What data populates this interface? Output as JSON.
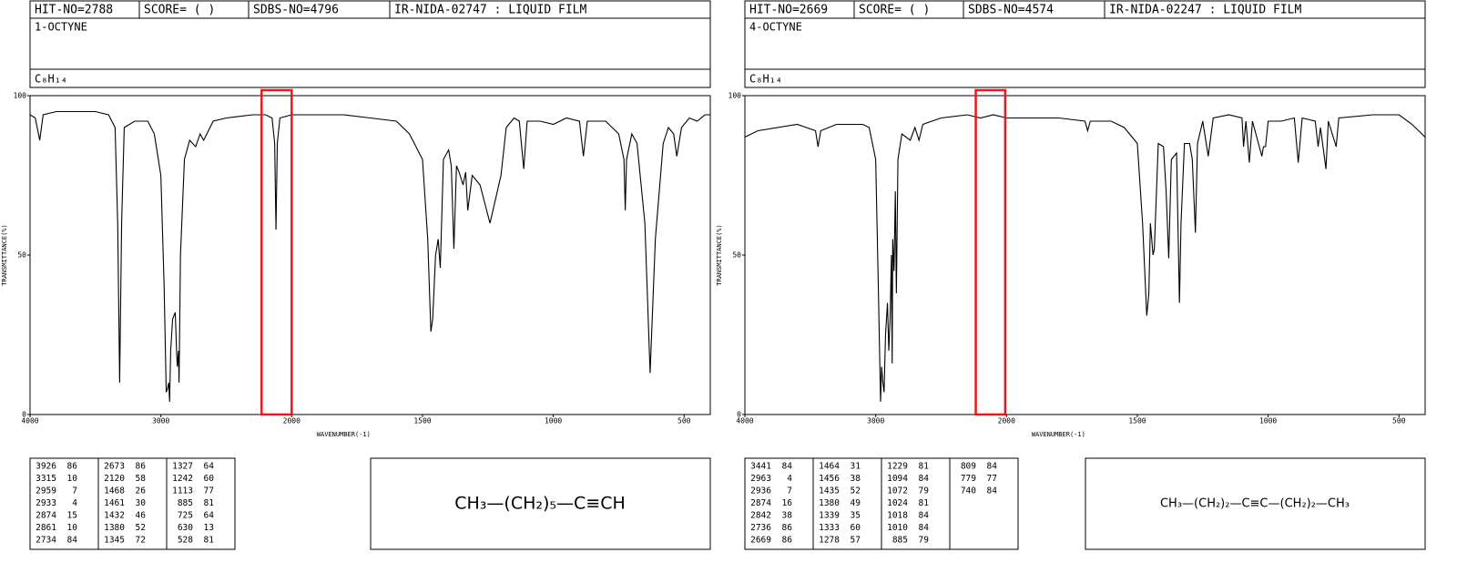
{
  "chart_data": [
    {
      "type": "line",
      "header": {
        "hit_no": "HIT-NO=2788",
        "score": "SCORE=  (   )",
        "sdbs_no": "SDBS-NO=4796",
        "method": "IR-NIDA-02747 : LIQUID FILM"
      },
      "name": "1-OCTYNE",
      "formula": "C₈H₁₄",
      "xlabel": "WAVENUMBER(-1)",
      "ylabel": "TRANSMITTANCE(%)",
      "xlim": [
        4000,
        400
      ],
      "xticks": [
        4000,
        3000,
        2000,
        1500,
        1000,
        500
      ],
      "ylim": [
        0,
        100
      ],
      "yticks": [
        0,
        50,
        100
      ],
      "color": "#000000",
      "highlight": [
        2230,
        2000
      ],
      "highlight_color": "#e8191e",
      "x": [
        4000,
        3960,
        3926,
        3900,
        3800,
        3500,
        3400,
        3350,
        3330,
        3315,
        3300,
        3280,
        3200,
        3100,
        3050,
        3000,
        2975,
        2959,
        2950,
        2940,
        2933,
        2925,
        2910,
        2890,
        2880,
        2874,
        2865,
        2861,
        2850,
        2820,
        2780,
        2734,
        2700,
        2673,
        2600,
        2500,
        2300,
        2200,
        2150,
        2130,
        2120,
        2110,
        2090,
        2000,
        1900,
        1800,
        1700,
        1600,
        1550,
        1500,
        1480,
        1468,
        1461,
        1450,
        1440,
        1432,
        1420,
        1400,
        1390,
        1380,
        1370,
        1360,
        1345,
        1335,
        1327,
        1310,
        1280,
        1242,
        1200,
        1180,
        1150,
        1130,
        1113,
        1100,
        1050,
        1000,
        950,
        900,
        885,
        870,
        800,
        750,
        730,
        725,
        720,
        700,
        680,
        650,
        630,
        610,
        580,
        560,
        540,
        528,
        510,
        480,
        450,
        420,
        400
      ],
      "values": [
        94,
        93,
        86,
        94,
        95,
        95,
        94,
        90,
        60,
        10,
        60,
        90,
        92,
        92,
        88,
        75,
        40,
        7,
        8,
        10,
        4,
        20,
        30,
        32,
        20,
        15,
        20,
        10,
        50,
        80,
        86,
        84,
        88,
        86,
        92,
        93,
        94,
        94,
        93,
        85,
        58,
        85,
        93,
        94,
        94,
        94,
        93,
        92,
        88,
        80,
        55,
        26,
        30,
        50,
        55,
        46,
        80,
        83,
        78,
        52,
        78,
        76,
        72,
        76,
        64,
        75,
        72,
        60,
        75,
        90,
        93,
        92,
        77,
        92,
        92,
        91,
        93,
        92,
        81,
        92,
        92,
        88,
        80,
        64,
        80,
        88,
        85,
        60,
        13,
        55,
        85,
        90,
        88,
        81,
        90,
        93,
        92,
        94,
        94
      ],
      "peak_table": [
        [
          [
            3926,
            86
          ],
          [
            3315,
            10
          ],
          [
            2959,
            7
          ],
          [
            2933,
            4
          ],
          [
            2874,
            15
          ],
          [
            2861,
            10
          ],
          [
            2734,
            84
          ]
        ],
        [
          [
            2673,
            86
          ],
          [
            2120,
            58
          ],
          [
            1468,
            26
          ],
          [
            1461,
            30
          ],
          [
            1432,
            46
          ],
          [
            1380,
            52
          ],
          [
            1345,
            72
          ]
        ],
        [
          [
            1327,
            64
          ],
          [
            1242,
            60
          ],
          [
            1113,
            77
          ],
          [
            885,
            81
          ],
          [
            725,
            64
          ],
          [
            630,
            13
          ],
          [
            528,
            81
          ]
        ]
      ],
      "structure": "CH₃—(CH₂)₅—C≡CH"
    },
    {
      "type": "line",
      "header": {
        "hit_no": "HIT-NO=2669",
        "score": "SCORE=  (   )",
        "sdbs_no": "SDBS-NO=4574",
        "method": "IR-NIDA-02247 : LIQUID FILM"
      },
      "name": "4-OCTYNE",
      "formula": "C₈H₁₄",
      "xlabel": "WAVENUMBER(-1)",
      "ylabel": "TRANSMITTANCE(%)",
      "xlim": [
        4000,
        400
      ],
      "xticks": [
        4000,
        3000,
        2000,
        1500,
        1000,
        500
      ],
      "ylim": [
        0,
        100
      ],
      "yticks": [
        0,
        50,
        100
      ],
      "color": "#000000",
      "highlight": [
        2235,
        2010
      ],
      "highlight_color": "#e8191e",
      "x": [
        4000,
        3900,
        3600,
        3460,
        3441,
        3420,
        3300,
        3100,
        3050,
        3000,
        2980,
        2963,
        2955,
        2945,
        2936,
        2925,
        2910,
        2900,
        2890,
        2880,
        2874,
        2870,
        2860,
        2850,
        2842,
        2830,
        2800,
        2736,
        2700,
        2669,
        2640,
        2500,
        2300,
        2200,
        2100,
        2000,
        1800,
        1700,
        1690,
        1680,
        1600,
        1550,
        1500,
        1480,
        1464,
        1456,
        1450,
        1440,
        1435,
        1420,
        1400,
        1390,
        1380,
        1370,
        1350,
        1339,
        1333,
        1320,
        1300,
        1290,
        1278,
        1270,
        1250,
        1229,
        1210,
        1150,
        1100,
        1094,
        1085,
        1072,
        1060,
        1024,
        1018,
        1010,
        1000,
        950,
        900,
        885,
        870,
        820,
        809,
        800,
        779,
        770,
        740,
        730,
        600,
        500,
        450,
        400
      ],
      "values": [
        87,
        89,
        91,
        89,
        84,
        89,
        91,
        91,
        90,
        80,
        40,
        4,
        15,
        10,
        7,
        25,
        35,
        20,
        30,
        50,
        16,
        55,
        45,
        70,
        38,
        80,
        88,
        86,
        90,
        86,
        91,
        93,
        94,
        93,
        94,
        93,
        93,
        92,
        89,
        92,
        92,
        90,
        85,
        60,
        31,
        38,
        60,
        50,
        52,
        85,
        84,
        70,
        49,
        80,
        82,
        35,
        60,
        85,
        85,
        80,
        57,
        85,
        92,
        81,
        93,
        94,
        93,
        84,
        92,
        79,
        92,
        81,
        84,
        84,
        92,
        92,
        93,
        79,
        93,
        92,
        84,
        90,
        77,
        92,
        84,
        93,
        94,
        94,
        91,
        87
      ],
      "peak_table": [
        [
          [
            3441,
            84
          ],
          [
            2963,
            4
          ],
          [
            2936,
            7
          ],
          [
            2874,
            16
          ],
          [
            2842,
            38
          ],
          [
            2736,
            86
          ],
          [
            2669,
            86
          ]
        ],
        [
          [
            1464,
            31
          ],
          [
            1456,
            38
          ],
          [
            1435,
            52
          ],
          [
            1380,
            49
          ],
          [
            1339,
            35
          ],
          [
            1333,
            60
          ],
          [
            1278,
            57
          ]
        ],
        [
          [
            1229,
            81
          ],
          [
            1094,
            84
          ],
          [
            1072,
            79
          ],
          [
            1024,
            81
          ],
          [
            1018,
            84
          ],
          [
            1010,
            84
          ],
          [
            885,
            79
          ]
        ],
        [
          [
            809,
            84
          ],
          [
            779,
            77
          ],
          [
            740,
            84
          ]
        ]
      ],
      "structure": "CH₃—(CH₂)₂—C≡C—(CH₂)₂—CH₃"
    }
  ]
}
